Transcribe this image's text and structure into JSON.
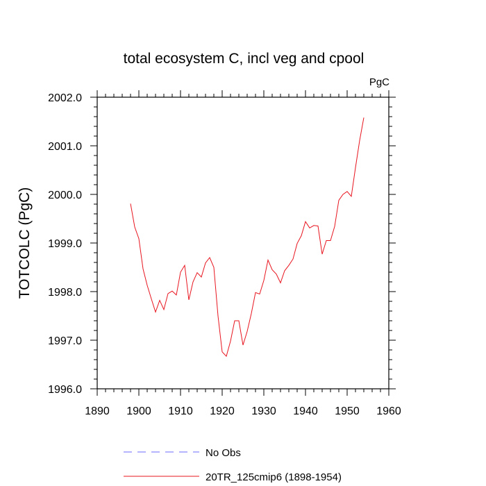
{
  "chart_data": {
    "type": "line",
    "title": "total ecosystem C, incl veg and cpool",
    "units_label": "PgC",
    "xlabel": "",
    "ylabel": "TOTCOLC  (PgC)",
    "xlim": [
      1890,
      1960
    ],
    "ylim": [
      1996.0,
      2002.0
    ],
    "x_ticks": [
      1890,
      1900,
      1910,
      1920,
      1930,
      1940,
      1950,
      1960
    ],
    "x_tick_labels": [
      "1890",
      "1900",
      "1910",
      "1920",
      "1930",
      "1940",
      "1950",
      "1960"
    ],
    "y_ticks": [
      1996.0,
      1997.0,
      1998.0,
      1999.0,
      2000.0,
      2001.0,
      2002.0
    ],
    "y_tick_labels": [
      "1996.0",
      "1997.0",
      "1998.0",
      "1999.0",
      "2000.0",
      "2001.0",
      "2002.0"
    ],
    "grid": false,
    "legend_placement": "bottom",
    "legend": [
      {
        "name": "No Obs",
        "color": "#6b6bff",
        "style": "dashed"
      },
      {
        "name": "20TR_125cmip6 (1898-1954)",
        "color": "#e8141e",
        "style": "solid"
      }
    ],
    "series": [
      {
        "name": "20TR_125cmip6 (1898-1954)",
        "color": "#e8141e",
        "x": [
          1898,
          1899,
          1900,
          1901,
          1902,
          1903,
          1904,
          1905,
          1906,
          1907,
          1908,
          1909,
          1910,
          1911,
          1912,
          1913,
          1914,
          1915,
          1916,
          1917,
          1918,
          1919,
          1920,
          1921,
          1922,
          1923,
          1924,
          1925,
          1926,
          1927,
          1928,
          1929,
          1930,
          1931,
          1932,
          1933,
          1934,
          1935,
          1936,
          1937,
          1938,
          1939,
          1940,
          1941,
          1942,
          1943,
          1944,
          1945,
          1946,
          1947,
          1948,
          1949,
          1950,
          1951,
          1952,
          1953,
          1954
        ],
        "y": [
          1999.81,
          1999.33,
          1999.09,
          1998.47,
          1998.13,
          1997.85,
          1997.58,
          1997.82,
          1997.63,
          1997.96,
          1998.01,
          1997.93,
          1998.4,
          1998.54,
          1997.83,
          1998.2,
          1998.39,
          1998.3,
          1998.59,
          1998.7,
          1998.5,
          1997.5,
          1996.76,
          1996.67,
          1996.98,
          1997.4,
          1997.4,
          1996.9,
          1997.18,
          1997.55,
          1997.98,
          1997.95,
          1998.23,
          1998.65,
          1998.45,
          1998.36,
          1998.18,
          1998.43,
          1998.54,
          1998.67,
          1998.99,
          1999.15,
          1999.44,
          1999.31,
          1999.36,
          1999.35,
          1998.77,
          1999.05,
          1999.05,
          1999.34,
          1999.88,
          2000.0,
          2000.06,
          1999.96,
          2000.55,
          2001.11,
          2001.58
        ]
      }
    ]
  }
}
